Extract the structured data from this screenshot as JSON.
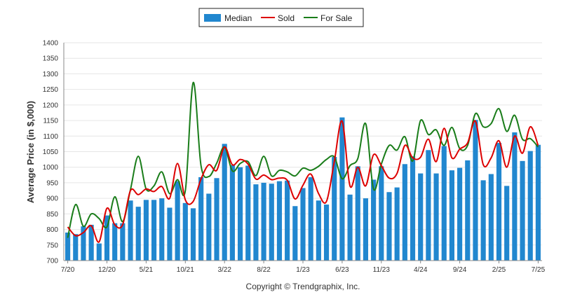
{
  "chart_data": {
    "type": "bar",
    "title": "",
    "ylabel": "Average Price (in $,000)",
    "xlabel": "",
    "ylim": [
      700,
      1400
    ],
    "y_ticks": [
      700,
      750,
      800,
      850,
      900,
      950,
      1000,
      1050,
      1100,
      1150,
      1200,
      1250,
      1300,
      1350,
      1400
    ],
    "x_tick_labels": [
      {
        "label": "7/20",
        "index": 0
      },
      {
        "label": "12/20",
        "index": 5
      },
      {
        "label": "5/21",
        "index": 10
      },
      {
        "label": "10/21",
        "index": 15
      },
      {
        "label": "3/22",
        "index": 20
      },
      {
        "label": "8/22",
        "index": 25
      },
      {
        "label": "1/23",
        "index": 30
      },
      {
        "label": "6/23",
        "index": 35
      },
      {
        "label": "11/23",
        "index": 40
      },
      {
        "label": "4/24",
        "index": 45
      },
      {
        "label": "9/24",
        "index": 50
      },
      {
        "label": "2/25",
        "index": 55
      },
      {
        "label": "7/25",
        "index": 60
      }
    ],
    "categories": [
      "7/20",
      "8/20",
      "9/20",
      "10/20",
      "11/20",
      "12/20",
      "1/21",
      "2/21",
      "3/21",
      "4/21",
      "5/21",
      "6/21",
      "7/21",
      "8/21",
      "9/21",
      "10/21",
      "11/21",
      "12/21",
      "1/22",
      "2/22",
      "3/22",
      "4/22",
      "5/22",
      "6/22",
      "7/22",
      "8/22",
      "9/22",
      "10/22",
      "11/22",
      "12/22",
      "1/23",
      "2/23",
      "3/23",
      "4/23",
      "5/23",
      "6/23",
      "7/23",
      "8/23",
      "9/23",
      "10/23",
      "11/23",
      "12/23",
      "1/24",
      "2/24",
      "3/24",
      "4/24",
      "5/24",
      "6/24",
      "7/24",
      "8/24",
      "9/24",
      "10/24",
      "11/24",
      "12/24",
      "1/25",
      "2/25",
      "3/25",
      "4/25",
      "5/25",
      "6/25",
      "7/25"
    ],
    "series": [
      {
        "name": "Median",
        "type": "bar",
        "color": "#2187cf",
        "values": [
          790,
          785,
          810,
          815,
          755,
          845,
          820,
          820,
          893,
          873,
          895,
          895,
          900,
          870,
          955,
          885,
          868,
          968,
          915,
          965,
          1075,
          1007,
          1000,
          1005,
          945,
          950,
          947,
          955,
          957,
          875,
          933,
          968,
          893,
          880,
          1033,
          1160,
          912,
          1003,
          900,
          960,
          1003,
          920,
          935,
          1010,
          1035,
          980,
          1055,
          980,
          1068,
          990,
          998,
          1022,
          1152,
          958,
          978,
          1078,
          940,
          1112,
          1020,
          1052,
          1072
        ]
      },
      {
        "name": "Sold",
        "type": "line",
        "color": "#dd0000",
        "values": [
          808,
          780,
          790,
          812,
          760,
          868,
          815,
          815,
          925,
          912,
          930,
          922,
          938,
          900,
          1012,
          895,
          890,
          962,
          1008,
          990,
          1065,
          1008,
          1025,
          1010,
          962,
          975,
          960,
          965,
          958,
          898,
          942,
          978,
          915,
          890,
          1018,
          1148,
          940,
          1000,
          940,
          1040,
          1005,
          965,
          980,
          1070,
          1030,
          1032,
          1090,
          1018,
          1125,
          1030,
          1058,
          1078,
          1148,
          1008,
          1030,
          1085,
          1000,
          1100,
          1045,
          1130,
          1070
        ]
      },
      {
        "name": "For Sale",
        "type": "line",
        "color": "#1a7d1a",
        "values": [
          773,
          880,
          810,
          850,
          835,
          808,
          905,
          825,
          928,
          1035,
          930,
          940,
          985,
          915,
          960,
          925,
          1272,
          1005,
          970,
          1013,
          1065,
          988,
          1012,
          1018,
          973,
          1035,
          972,
          990,
          985,
          972,
          997,
          990,
          1003,
          1025,
          1033,
          963,
          1005,
          1028,
          1140,
          930,
          1010,
          1070,
          1055,
          1098,
          1020,
          1150,
          1105,
          1120,
          1070,
          1128,
          1060,
          1070,
          1172,
          1130,
          1140,
          1188,
          1115,
          1167,
          1090,
          1092,
          1065
        ]
      }
    ],
    "legend": [
      "Median",
      "Sold",
      "For Sale"
    ],
    "legend_position": "top-center",
    "grid": true
  },
  "footer": {
    "copyright": "Copyright © Trendgraphix, Inc."
  }
}
